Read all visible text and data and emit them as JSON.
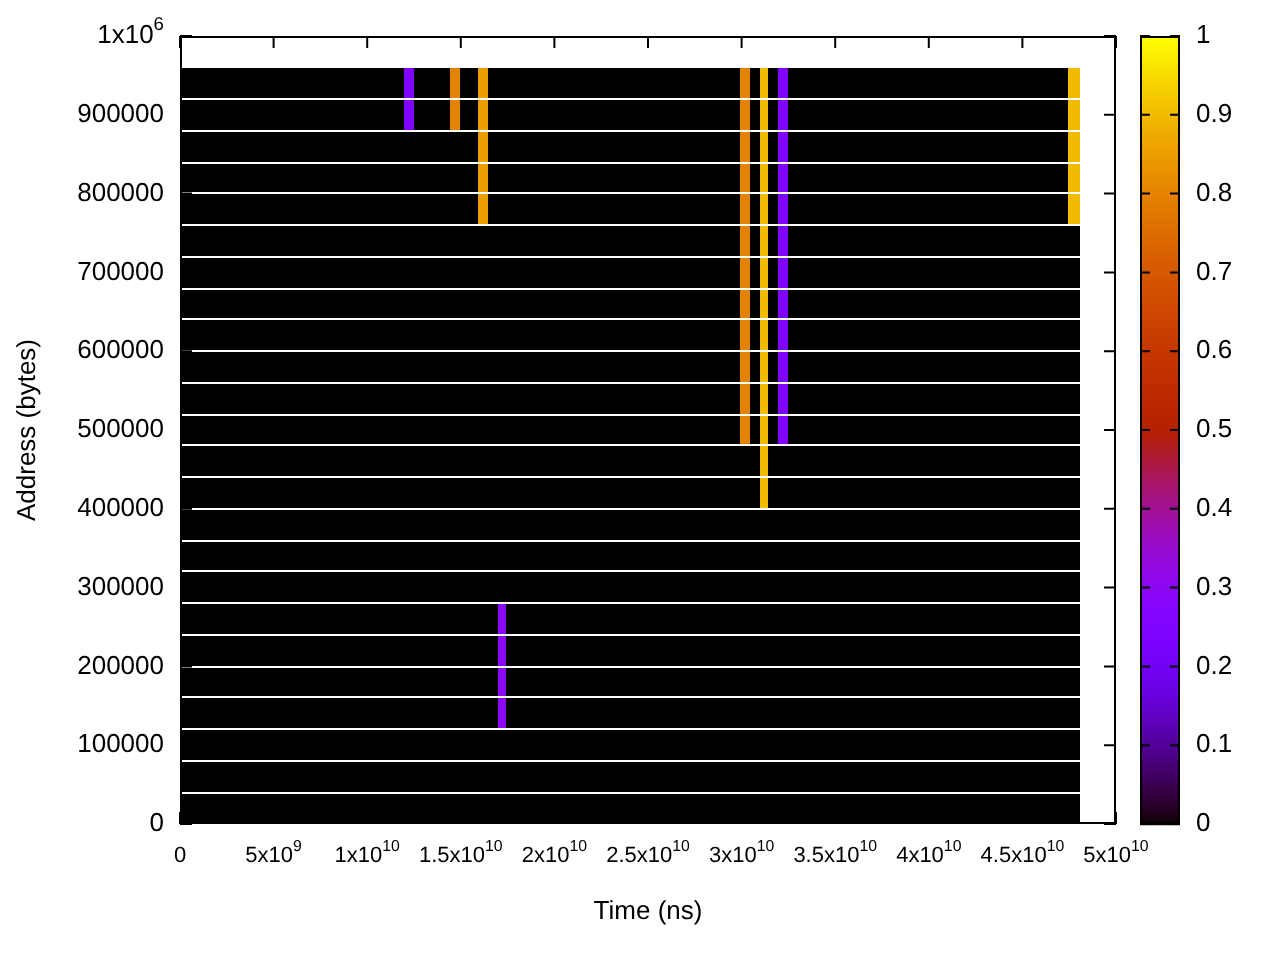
{
  "chart_data": {
    "type": "heatmap",
    "xlabel": "Time (ns)",
    "ylabel": "Address (bytes)",
    "xlim": [
      0,
      50000000000.0
    ],
    "ylim": [
      0,
      1000000
    ],
    "xticks": [
      0,
      {
        "value": 5000000000.0,
        "label": "5x10$^{9}$"
      },
      {
        "value": 10000000000.0,
        "label": "1x10$^{10}$"
      },
      {
        "value": 15000000000.0,
        "label": "1.5x10$^{10}$"
      },
      {
        "value": 20000000000.0,
        "label": "2x10$^{10}$"
      },
      {
        "value": 25000000000.0,
        "label": "2.5x10$^{10}$"
      },
      {
        "value": 30000000000.0,
        "label": "3x10$^{10}$"
      },
      {
        "value": 35000000000.0,
        "label": "3.5x10$^{10}$"
      },
      {
        "value": 40000000000.0,
        "label": "4x10$^{10}$"
      },
      {
        "value": 45000000000.0,
        "label": "4.5x10$^{10}$"
      },
      {
        "value": 50000000000.0,
        "label": "5x10$^{10}$"
      }
    ],
    "yticks": [
      0,
      100000,
      200000,
      300000,
      400000,
      500000,
      600000,
      700000,
      800000,
      900000,
      {
        "value": 1000000,
        "label": "1x10$^{6}$"
      }
    ],
    "clim": [
      0,
      1
    ],
    "cticks": [
      0,
      0.1,
      0.2,
      0.3,
      0.4,
      0.5,
      0.6,
      0.7,
      0.8,
      0.9,
      1
    ],
    "x": [
      250000000.0,
      750000000.0,
      1250000000.0,
      1750000000.0,
      2250000000.0,
      2750000000.0,
      3250000000.0,
      3750000000.0,
      4250000000.0,
      4750000000.0,
      5250000000.0,
      5750000000.0,
      6250000000.0,
      6750000000.0,
      7250000000.0,
      7750000000.0,
      8250000000.0,
      8750000000.0,
      9250000000.0,
      9750000000.0,
      10250000000.0,
      10750000000.0,
      11250000000.0,
      11750000000.0,
      12250000000.0,
      12750000000.0,
      13250000000.0,
      13750000000.0,
      14250000000.0,
      14750000000.0,
      15250000000.0,
      15750000000.0,
      16250000000.0,
      16750000000.0,
      17250000000.0,
      17750000000.0,
      18250000000.0,
      18750000000.0,
      19250000000.0,
      19750000000.0,
      20250000000.0,
      20750000000.0,
      21250000000.0,
      21750000000.0,
      22250000000.0,
      22750000000.0,
      23250000000.0,
      23750000000.0,
      24250000000.0,
      24750000000.0,
      25250000000.0,
      25750000000.0,
      26250000000.0,
      26750000000.0,
      27250000000.0,
      27750000000.0,
      28250000000.0,
      28750000000.0,
      29250000000.0,
      29750000000.0,
      30250000000.0,
      30750000000.0,
      31250000000.0,
      31750000000.0,
      32250000000.0,
      32750000000.0,
      33250000000.0,
      33750000000.0,
      34250000000.0,
      34750000000.0,
      35250000000.0,
      35750000000.0,
      36250000000.0,
      36750000000.0,
      37250000000.0,
      37750000000.0,
      38250000000.0,
      38750000000.0,
      39250000000.0,
      39750000000.0,
      40250000000.0,
      40750000000.0,
      41250000000.0,
      41750000000.0,
      42250000000.0,
      42750000000.0,
      43250000000.0,
      43750000000.0,
      44250000000.0,
      44750000000.0,
      45250000000.0,
      45750000000.0,
      46250000000.0,
      46750000000.0,
      47250000000.0,
      47750000000.0
    ],
    "y": [
      940000,
      900000,
      860000,
      820000,
      780000,
      740000,
      700000,
      660000,
      620000,
      580000,
      540000,
      500000,
      460000,
      420000,
      380000,
      340000,
      300000,
      260000,
      220000,
      180000,
      140000,
      100000,
      60000,
      20000
    ],
    "cells": [
      [
        0,
        0,
        0,
        0,
        0,
        0,
        0,
        0,
        0,
        0,
        0,
        0,
        0,
        0,
        0,
        0,
        0,
        0,
        0,
        0,
        0,
        0,
        0,
        0,
        0.25,
        0,
        0,
        0,
        0,
        0.8,
        0,
        0,
        0.85,
        0,
        0,
        0,
        0,
        0,
        0,
        0,
        0,
        0,
        0,
        0,
        0,
        0,
        0,
        0,
        0,
        0,
        0,
        0,
        0,
        0,
        0,
        0,
        0,
        0,
        0,
        0,
        0.8,
        0,
        0.9,
        0,
        0.25,
        0,
        0,
        0,
        0,
        0,
        0,
        0,
        0,
        0,
        0,
        0,
        0,
        0,
        0,
        0,
        0,
        0,
        0,
        0,
        0,
        0,
        0,
        0,
        0,
        0,
        0,
        0,
        0,
        0,
        0,
        0.9
      ],
      [
        0,
        0,
        0,
        0,
        0,
        0,
        0,
        0,
        0,
        0,
        0,
        0,
        0,
        0,
        0,
        0,
        0,
        0,
        0,
        0,
        0,
        0,
        0,
        0,
        0.25,
        0,
        0,
        0,
        0,
        0.8,
        0,
        0,
        0.85,
        0,
        0,
        0,
        0,
        0,
        0,
        0,
        0,
        0,
        0,
        0,
        0,
        0,
        0,
        0,
        0,
        0,
        0,
        0,
        0,
        0,
        0,
        0,
        0,
        0,
        0,
        0,
        0.8,
        0,
        0.9,
        0,
        0.25,
        0,
        0,
        0,
        0,
        0,
        0,
        0,
        0,
        0,
        0,
        0,
        0,
        0,
        0,
        0,
        0,
        0,
        0,
        0,
        0,
        0,
        0,
        0,
        0,
        0,
        0,
        0,
        0,
        0,
        0,
        0.9
      ],
      [
        0,
        0,
        0,
        0,
        0,
        0,
        0,
        0,
        0,
        0,
        0,
        0,
        0,
        0,
        0,
        0,
        0,
        0,
        0,
        0,
        0,
        0,
        0,
        0,
        0,
        0,
        0,
        0,
        0,
        0,
        0,
        0,
        0.85,
        0,
        0,
        0,
        0,
        0,
        0,
        0,
        0,
        0,
        0,
        0,
        0,
        0,
        0,
        0,
        0,
        0,
        0,
        0,
        0,
        0,
        0,
        0,
        0,
        0,
        0,
        0,
        0.8,
        0,
        0.9,
        0,
        0.25,
        0,
        0,
        0,
        0,
        0,
        0,
        0,
        0,
        0,
        0,
        0,
        0,
        0,
        0,
        0,
        0,
        0,
        0,
        0,
        0,
        0,
        0,
        0,
        0,
        0,
        0,
        0,
        0,
        0,
        0,
        0.9
      ],
      [
        0,
        0,
        0,
        0,
        0,
        0,
        0,
        0,
        0,
        0,
        0,
        0,
        0,
        0,
        0,
        0,
        0,
        0,
        0,
        0,
        0,
        0,
        0,
        0,
        0,
        0,
        0,
        0,
        0,
        0,
        0,
        0,
        0.85,
        0,
        0,
        0,
        0,
        0,
        0,
        0,
        0,
        0,
        0,
        0,
        0,
        0,
        0,
        0,
        0,
        0,
        0,
        0,
        0,
        0,
        0,
        0,
        0,
        0,
        0,
        0,
        0.8,
        0,
        0.9,
        0,
        0.25,
        0,
        0,
        0,
        0,
        0,
        0,
        0,
        0,
        0,
        0,
        0,
        0,
        0,
        0,
        0,
        0,
        0,
        0,
        0,
        0,
        0,
        0,
        0,
        0,
        0,
        0,
        0,
        0,
        0,
        0,
        0.9
      ],
      [
        0,
        0,
        0,
        0,
        0,
        0,
        0,
        0,
        0,
        0,
        0,
        0,
        0,
        0,
        0,
        0,
        0,
        0,
        0,
        0,
        0,
        0,
        0,
        0,
        0,
        0,
        0,
        0,
        0,
        0,
        0,
        0,
        0.85,
        0,
        0,
        0,
        0,
        0,
        0,
        0,
        0,
        0,
        0,
        0,
        0,
        0,
        0,
        0,
        0,
        0,
        0,
        0,
        0,
        0,
        0,
        0,
        0,
        0,
        0,
        0,
        0.8,
        0,
        0.9,
        0,
        0.25,
        0,
        0,
        0,
        0,
        0,
        0,
        0,
        0,
        0,
        0,
        0,
        0,
        0,
        0,
        0,
        0,
        0,
        0,
        0,
        0,
        0,
        0,
        0,
        0,
        0,
        0,
        0,
        0,
        0,
        0,
        0.9
      ],
      [
        0,
        0,
        0,
        0,
        0,
        0,
        0,
        0,
        0,
        0,
        0,
        0,
        0,
        0,
        0,
        0,
        0,
        0,
        0,
        0,
        0,
        0,
        0,
        0,
        0,
        0,
        0,
        0,
        0,
        0,
        0,
        0,
        0,
        0,
        0,
        0,
        0,
        0,
        0,
        0,
        0,
        0,
        0,
        0,
        0,
        0,
        0,
        0,
        0,
        0,
        0,
        0,
        0,
        0,
        0,
        0,
        0,
        0,
        0,
        0,
        0.8,
        0,
        0.9,
        0,
        0.25,
        0,
        0,
        0,
        0,
        0,
        0,
        0,
        0,
        0,
        0,
        0,
        0,
        0,
        0,
        0,
        0,
        0,
        0,
        0,
        0,
        0,
        0,
        0,
        0,
        0,
        0,
        0,
        0,
        0,
        0,
        0
      ],
      [
        0,
        0,
        0,
        0,
        0,
        0,
        0,
        0,
        0,
        0,
        0,
        0,
        0,
        0,
        0,
        0,
        0,
        0,
        0,
        0,
        0,
        0,
        0,
        0,
        0,
        0,
        0,
        0,
        0,
        0,
        0,
        0,
        0,
        0,
        0,
        0,
        0,
        0,
        0,
        0,
        0,
        0,
        0,
        0,
        0,
        0,
        0,
        0,
        0,
        0,
        0,
        0,
        0,
        0,
        0,
        0,
        0,
        0,
        0,
        0,
        0.8,
        0,
        0.9,
        0,
        0.25,
        0,
        0,
        0,
        0,
        0,
        0,
        0,
        0,
        0,
        0,
        0,
        0,
        0,
        0,
        0,
        0,
        0,
        0,
        0,
        0,
        0,
        0,
        0,
        0,
        0,
        0,
        0,
        0,
        0,
        0,
        0
      ],
      [
        0,
        0,
        0,
        0,
        0,
        0,
        0,
        0,
        0,
        0,
        0,
        0,
        0,
        0,
        0,
        0,
        0,
        0,
        0,
        0,
        0,
        0,
        0,
        0,
        0,
        0,
        0,
        0,
        0,
        0,
        0,
        0,
        0,
        0,
        0,
        0,
        0,
        0,
        0,
        0,
        0,
        0,
        0,
        0,
        0,
        0,
        0,
        0,
        0,
        0,
        0,
        0,
        0,
        0,
        0,
        0,
        0,
        0,
        0,
        0,
        0.8,
        0,
        0.9,
        0,
        0.25,
        0,
        0,
        0,
        0,
        0,
        0,
        0,
        0,
        0,
        0,
        0,
        0,
        0,
        0,
        0,
        0,
        0,
        0,
        0,
        0,
        0,
        0,
        0,
        0,
        0,
        0,
        0,
        0,
        0,
        0,
        0
      ],
      [
        0,
        0,
        0,
        0,
        0,
        0,
        0,
        0,
        0,
        0,
        0,
        0,
        0,
        0,
        0,
        0,
        0,
        0,
        0,
        0,
        0,
        0,
        0,
        0,
        0,
        0,
        0,
        0,
        0,
        0,
        0,
        0,
        0,
        0,
        0,
        0,
        0,
        0,
        0,
        0,
        0,
        0,
        0,
        0,
        0,
        0,
        0,
        0,
        0,
        0,
        0,
        0,
        0,
        0,
        0,
        0,
        0,
        0,
        0,
        0,
        0.8,
        0,
        0.9,
        0,
        0.25,
        0,
        0,
        0,
        0,
        0,
        0,
        0,
        0,
        0,
        0,
        0,
        0,
        0,
        0,
        0,
        0,
        0,
        0,
        0,
        0,
        0,
        0,
        0,
        0,
        0,
        0,
        0,
        0,
        0,
        0,
        0
      ],
      [
        0,
        0,
        0,
        0,
        0,
        0,
        0,
        0,
        0,
        0,
        0,
        0,
        0,
        0,
        0,
        0,
        0,
        0,
        0,
        0,
        0,
        0,
        0,
        0,
        0,
        0,
        0,
        0,
        0,
        0,
        0,
        0,
        0,
        0,
        0,
        0,
        0,
        0,
        0,
        0,
        0,
        0,
        0,
        0,
        0,
        0,
        0,
        0,
        0,
        0,
        0,
        0,
        0,
        0,
        0,
        0,
        0,
        0,
        0,
        0,
        0.8,
        0,
        0.9,
        0,
        0.25,
        0,
        0,
        0,
        0,
        0,
        0,
        0,
        0,
        0,
        0,
        0,
        0,
        0,
        0,
        0,
        0,
        0,
        0,
        0,
        0,
        0,
        0,
        0,
        0,
        0,
        0,
        0,
        0,
        0,
        0,
        0
      ],
      [
        0,
        0,
        0,
        0,
        0,
        0,
        0,
        0,
        0,
        0,
        0,
        0,
        0,
        0,
        0,
        0,
        0,
        0,
        0,
        0,
        0,
        0,
        0,
        0,
        0,
        0,
        0,
        0,
        0,
        0,
        0,
        0,
        0,
        0,
        0,
        0,
        0,
        0,
        0,
        0,
        0,
        0,
        0,
        0,
        0,
        0,
        0,
        0,
        0,
        0,
        0,
        0,
        0,
        0,
        0,
        0,
        0,
        0,
        0,
        0,
        0.8,
        0,
        0.9,
        0,
        0.25,
        0,
        0,
        0,
        0,
        0,
        0,
        0,
        0,
        0,
        0,
        0,
        0,
        0,
        0,
        0,
        0,
        0,
        0,
        0,
        0,
        0,
        0,
        0,
        0,
        0,
        0,
        0,
        0,
        0,
        0,
        0
      ],
      [
        0,
        0,
        0,
        0,
        0,
        0,
        0,
        0,
        0,
        0,
        0,
        0,
        0,
        0,
        0,
        0,
        0,
        0,
        0,
        0,
        0,
        0,
        0,
        0,
        0,
        0,
        0,
        0,
        0,
        0,
        0,
        0,
        0,
        0,
        0,
        0,
        0,
        0,
        0,
        0,
        0,
        0,
        0,
        0,
        0,
        0,
        0,
        0,
        0,
        0,
        0,
        0,
        0,
        0,
        0,
        0,
        0,
        0,
        0,
        0,
        0.8,
        0,
        0.9,
        0,
        0.25,
        0,
        0,
        0,
        0,
        0,
        0,
        0,
        0,
        0,
        0,
        0,
        0,
        0,
        0,
        0,
        0,
        0,
        0,
        0,
        0,
        0,
        0,
        0,
        0,
        0,
        0,
        0,
        0,
        0,
        0,
        0
      ],
      [
        0,
        0,
        0,
        0,
        0,
        0,
        0,
        0,
        0,
        0,
        0,
        0,
        0,
        0,
        0,
        0,
        0,
        0,
        0,
        0,
        0,
        0,
        0,
        0,
        0,
        0,
        0,
        0,
        0,
        0,
        0,
        0,
        0,
        0,
        0,
        0,
        0,
        0,
        0,
        0,
        0,
        0,
        0,
        0,
        0,
        0,
        0,
        0,
        0,
        0,
        0,
        0,
        0,
        0,
        0,
        0,
        0,
        0,
        0,
        0,
        0,
        0,
        0.9,
        0,
        0,
        0,
        0,
        0,
        0,
        0,
        0,
        0,
        0,
        0,
        0,
        0,
        0,
        0,
        0,
        0,
        0,
        0,
        0,
        0,
        0,
        0,
        0,
        0,
        0,
        0,
        0,
        0,
        0,
        0,
        0,
        0
      ],
      [
        0,
        0,
        0,
        0,
        0,
        0,
        0,
        0,
        0,
        0,
        0,
        0,
        0,
        0,
        0,
        0,
        0,
        0,
        0,
        0,
        0,
        0,
        0,
        0,
        0,
        0,
        0,
        0,
        0,
        0,
        0,
        0,
        0,
        0,
        0,
        0,
        0,
        0,
        0,
        0,
        0,
        0,
        0,
        0,
        0,
        0,
        0,
        0,
        0,
        0,
        0,
        0,
        0,
        0,
        0,
        0,
        0,
        0,
        0,
        0,
        0,
        0,
        0.9,
        0,
        0,
        0,
        0,
        0,
        0,
        0,
        0,
        0,
        0,
        0,
        0,
        0,
        0,
        0,
        0,
        0,
        0,
        0,
        0,
        0,
        0,
        0,
        0,
        0,
        0,
        0,
        0,
        0,
        0,
        0,
        0,
        0
      ],
      [
        0,
        0,
        0,
        0,
        0,
        0,
        0,
        0,
        0,
        0,
        0,
        0,
        0,
        0,
        0,
        0,
        0,
        0,
        0,
        0,
        0,
        0,
        0,
        0,
        0,
        0,
        0,
        0,
        0,
        0,
        0,
        0,
        0,
        0,
        0,
        0,
        0,
        0,
        0,
        0,
        0,
        0,
        0,
        0,
        0,
        0,
        0,
        0,
        0,
        0,
        0,
        0,
        0,
        0,
        0,
        0,
        0,
        0,
        0,
        0,
        0,
        0,
        0,
        0,
        0,
        0,
        0,
        0,
        0,
        0,
        0,
        0,
        0,
        0,
        0,
        0,
        0,
        0,
        0,
        0,
        0,
        0,
        0,
        0,
        0,
        0,
        0,
        0,
        0,
        0,
        0,
        0,
        0,
        0,
        0,
        0
      ],
      [
        0,
        0,
        0,
        0,
        0,
        0,
        0,
        0,
        0,
        0,
        0,
        0,
        0,
        0,
        0,
        0,
        0,
        0,
        0,
        0,
        0,
        0,
        0,
        0,
        0,
        0,
        0,
        0,
        0,
        0,
        0,
        0,
        0,
        0,
        0,
        0,
        0,
        0,
        0,
        0,
        0,
        0,
        0,
        0,
        0,
        0,
        0,
        0,
        0,
        0,
        0,
        0,
        0,
        0,
        0,
        0,
        0,
        0,
        0,
        0,
        0,
        0,
        0,
        0,
        0,
        0,
        0,
        0,
        0,
        0,
        0,
        0,
        0,
        0,
        0,
        0,
        0,
        0,
        0,
        0,
        0,
        0,
        0,
        0,
        0,
        0,
        0,
        0,
        0,
        0,
        0,
        0,
        0,
        0,
        0,
        0
      ],
      [
        0,
        0,
        0,
        0,
        0,
        0,
        0,
        0,
        0,
        0,
        0,
        0,
        0,
        0,
        0,
        0,
        0,
        0,
        0,
        0,
        0,
        0,
        0,
        0,
        0,
        0,
        0,
        0,
        0,
        0,
        0,
        0,
        0,
        0,
        0,
        0,
        0,
        0,
        0,
        0,
        0,
        0,
        0,
        0,
        0,
        0,
        0,
        0,
        0,
        0,
        0,
        0,
        0,
        0,
        0,
        0,
        0,
        0,
        0,
        0,
        0,
        0,
        0,
        0,
        0,
        0,
        0,
        0,
        0,
        0,
        0,
        0,
        0,
        0,
        0,
        0,
        0,
        0,
        0,
        0,
        0,
        0,
        0,
        0,
        0,
        0,
        0,
        0,
        0,
        0,
        0,
        0,
        0,
        0,
        0,
        0
      ],
      [
        0,
        0,
        0,
        0,
        0,
        0,
        0,
        0,
        0,
        0,
        0,
        0,
        0,
        0,
        0,
        0,
        0,
        0,
        0,
        0,
        0,
        0,
        0,
        0,
        0,
        0,
        0,
        0,
        0,
        0,
        0,
        0,
        0,
        0,
        0.3,
        0,
        0,
        0,
        0,
        0,
        0,
        0,
        0,
        0,
        0,
        0,
        0,
        0,
        0,
        0,
        0,
        0,
        0,
        0,
        0,
        0,
        0,
        0,
        0,
        0,
        0,
        0,
        0,
        0,
        0,
        0,
        0,
        0,
        0,
        0,
        0,
        0,
        0,
        0,
        0,
        0,
        0,
        0,
        0,
        0,
        0,
        0,
        0,
        0,
        0,
        0,
        0,
        0,
        0,
        0,
        0,
        0,
        0,
        0,
        0,
        0
      ],
      [
        0,
        0,
        0,
        0,
        0,
        0,
        0,
        0,
        0,
        0,
        0,
        0,
        0,
        0,
        0,
        0,
        0,
        0,
        0,
        0,
        0,
        0,
        0,
        0,
        0,
        0,
        0,
        0,
        0,
        0,
        0,
        0,
        0,
        0,
        0.3,
        0,
        0,
        0,
        0,
        0,
        0,
        0,
        0,
        0,
        0,
        0,
        0,
        0,
        0,
        0,
        0,
        0,
        0,
        0,
        0,
        0,
        0,
        0,
        0,
        0,
        0,
        0,
        0,
        0,
        0,
        0,
        0,
        0,
        0,
        0,
        0,
        0,
        0,
        0,
        0,
        0,
        0,
        0,
        0,
        0,
        0,
        0,
        0,
        0,
        0,
        0,
        0,
        0,
        0,
        0,
        0,
        0,
        0,
        0,
        0,
        0
      ],
      [
        0,
        0,
        0,
        0,
        0,
        0,
        0,
        0,
        0,
        0,
        0,
        0,
        0,
        0,
        0,
        0,
        0,
        0,
        0,
        0,
        0,
        0,
        0,
        0,
        0,
        0,
        0,
        0,
        0,
        0,
        0,
        0,
        0,
        0,
        0.3,
        0,
        0,
        0,
        0,
        0,
        0,
        0,
        0,
        0,
        0,
        0,
        0,
        0,
        0,
        0,
        0,
        0,
        0,
        0,
        0,
        0,
        0,
        0,
        0,
        0,
        0,
        0,
        0,
        0,
        0,
        0,
        0,
        0,
        0,
        0,
        0,
        0,
        0,
        0,
        0,
        0,
        0,
        0,
        0,
        0,
        0,
        0,
        0,
        0,
        0,
        0,
        0,
        0,
        0,
        0,
        0,
        0,
        0,
        0,
        0,
        0
      ],
      [
        0,
        0,
        0,
        0,
        0,
        0,
        0,
        0,
        0,
        0,
        0,
        0,
        0,
        0,
        0,
        0,
        0,
        0,
        0,
        0,
        0,
        0,
        0,
        0,
        0,
        0,
        0,
        0,
        0,
        0,
        0,
        0,
        0,
        0,
        0.3,
        0,
        0,
        0,
        0,
        0,
        0,
        0,
        0,
        0,
        0,
        0,
        0,
        0,
        0,
        0,
        0,
        0,
        0,
        0,
        0,
        0,
        0,
        0,
        0,
        0,
        0,
        0,
        0,
        0,
        0,
        0,
        0,
        0,
        0,
        0,
        0,
        0,
        0,
        0,
        0,
        0,
        0,
        0,
        0,
        0,
        0,
        0,
        0,
        0,
        0,
        0,
        0,
        0,
        0,
        0,
        0,
        0,
        0,
        0,
        0,
        0
      ],
      [
        0,
        0,
        0,
        0,
        0,
        0,
        0,
        0,
        0,
        0,
        0,
        0,
        0,
        0,
        0,
        0,
        0,
        0,
        0,
        0,
        0,
        0,
        0,
        0,
        0,
        0,
        0,
        0,
        0,
        0,
        0,
        0,
        0,
        0,
        0,
        0,
        0,
        0,
        0,
        0,
        0,
        0,
        0,
        0,
        0,
        0,
        0,
        0,
        0,
        0,
        0,
        0,
        0,
        0,
        0,
        0,
        0,
        0,
        0,
        0,
        0,
        0,
        0,
        0,
        0,
        0,
        0,
        0,
        0,
        0,
        0,
        0,
        0,
        0,
        0,
        0,
        0,
        0,
        0,
        0,
        0,
        0,
        0,
        0,
        0,
        0,
        0,
        0,
        0,
        0,
        0,
        0,
        0,
        0,
        0,
        0
      ],
      [
        0,
        0,
        0,
        0,
        0,
        0,
        0,
        0,
        0,
        0,
        0,
        0,
        0,
        0,
        0,
        0,
        0,
        0,
        0,
        0,
        0,
        0,
        0,
        0,
        0,
        0,
        0,
        0,
        0,
        0,
        0,
        0,
        0,
        0,
        0,
        0,
        0,
        0,
        0,
        0,
        0,
        0,
        0,
        0,
        0,
        0,
        0,
        0,
        0,
        0,
        0,
        0,
        0,
        0,
        0,
        0,
        0,
        0,
        0,
        0,
        0,
        0,
        0,
        0,
        0,
        0,
        0,
        0,
        0,
        0,
        0,
        0,
        0,
        0,
        0,
        0,
        0,
        0,
        0,
        0,
        0,
        0,
        0,
        0,
        0,
        0,
        0,
        0,
        0,
        0,
        0,
        0,
        0,
        0,
        0,
        0
      ],
      [
        0,
        0,
        0,
        0,
        0,
        0,
        0,
        0,
        0,
        0,
        0,
        0,
        0,
        0,
        0,
        0,
        0,
        0,
        0,
        0,
        0,
        0,
        0,
        0,
        0,
        0,
        0,
        0,
        0,
        0,
        0,
        0,
        0,
        0,
        0,
        0,
        0,
        0,
        0,
        0,
        0,
        0,
        0,
        0,
        0,
        0,
        0,
        0,
        0,
        0,
        0,
        0,
        0,
        0,
        0,
        0,
        0,
        0,
        0,
        0,
        0,
        0,
        0,
        0,
        0,
        0,
        0,
        0,
        0,
        0,
        0,
        0,
        0,
        0,
        0,
        0,
        0,
        0,
        0,
        0,
        0,
        0,
        0,
        0,
        0,
        0,
        0,
        0,
        0,
        0,
        0,
        0,
        0,
        0,
        0,
        0
      ]
    ]
  }
}
